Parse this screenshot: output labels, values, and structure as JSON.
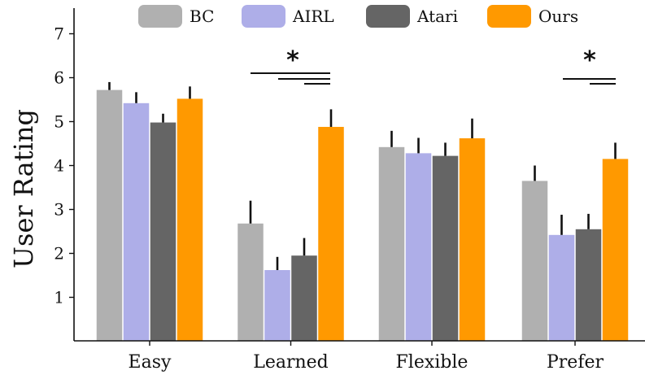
{
  "chart_data": {
    "type": "bar",
    "categories": [
      "Easy",
      "Learned",
      "Flexible",
      "Prefer"
    ],
    "ylabel": "User Rating",
    "xlabel": "",
    "ylim": [
      0,
      7.5
    ],
    "yticks": [
      1,
      2,
      3,
      4,
      5,
      6,
      7
    ],
    "legend_position": "top",
    "series": [
      {
        "name": "BC",
        "color": "#b0b0b0",
        "values": [
          5.72,
          2.68,
          4.42,
          3.65
        ],
        "errors": [
          0.18,
          0.52,
          0.37,
          0.35
        ]
      },
      {
        "name": "AIRL",
        "color": "#aeaee8",
        "values": [
          5.42,
          1.62,
          4.28,
          2.42
        ],
        "errors": [
          0.25,
          0.3,
          0.35,
          0.46
        ]
      },
      {
        "name": "Atari",
        "color": "#656565",
        "values": [
          4.98,
          1.95,
          4.22,
          2.55
        ],
        "errors": [
          0.2,
          0.4,
          0.3,
          0.35
        ]
      },
      {
        "name": "Ours",
        "color": "#ff9900",
        "values": [
          5.52,
          4.88,
          4.62,
          4.15
        ],
        "errors": [
          0.28,
          0.4,
          0.45,
          0.37
        ]
      }
    ],
    "significance": [
      {
        "category": "Learned",
        "label": "*",
        "comparisons": [
          "BC",
          "AIRL",
          "Atari"
        ]
      },
      {
        "category": "Prefer",
        "label": "*",
        "comparisons": [
          "AIRL",
          "Atari"
        ]
      }
    ]
  }
}
